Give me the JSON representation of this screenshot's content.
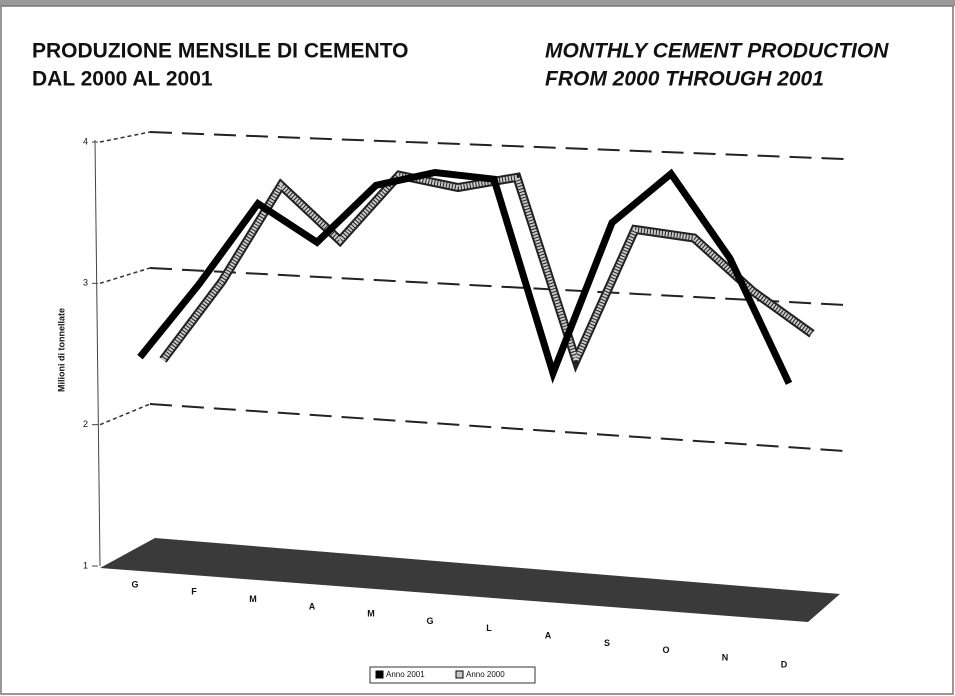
{
  "chart_data": {
    "type": "line3d",
    "title": [
      "PRODUZIONE MENSILE DI CEMENTO",
      "DAL 2000 AL 2001"
    ],
    "subtitle": [
      "MONTHLY CEMENT PRODUCTION",
      "FROM 2000 THROUGH 2001"
    ],
    "y_label": "Milioni di tonnellate",
    "categories": [
      "G",
      "F",
      "M",
      "A",
      "M",
      "G",
      "L",
      "A",
      "S",
      "O",
      "N",
      "D"
    ],
    "series": [
      {
        "name": "Anno 2001",
        "color": "#000000",
        "values": [
          2.34,
          2.9,
          3.51,
          3.25,
          3.68,
          3.79,
          3.76,
          2.41,
          3.49,
          3.85,
          3.28,
          2.44
        ]
      },
      {
        "name": "Anno 2000",
        "color": "#c8c8c8",
        "values": [
          2.33,
          2.93,
          3.65,
          3.27,
          3.76,
          3.69,
          3.78,
          2.51,
          3.45,
          3.41,
          3.06,
          2.79
        ]
      }
    ],
    "ylim": [
      1,
      4
    ],
    "yticks": [
      1,
      2,
      3,
      4
    ],
    "grid": true,
    "legend": "bottom"
  }
}
